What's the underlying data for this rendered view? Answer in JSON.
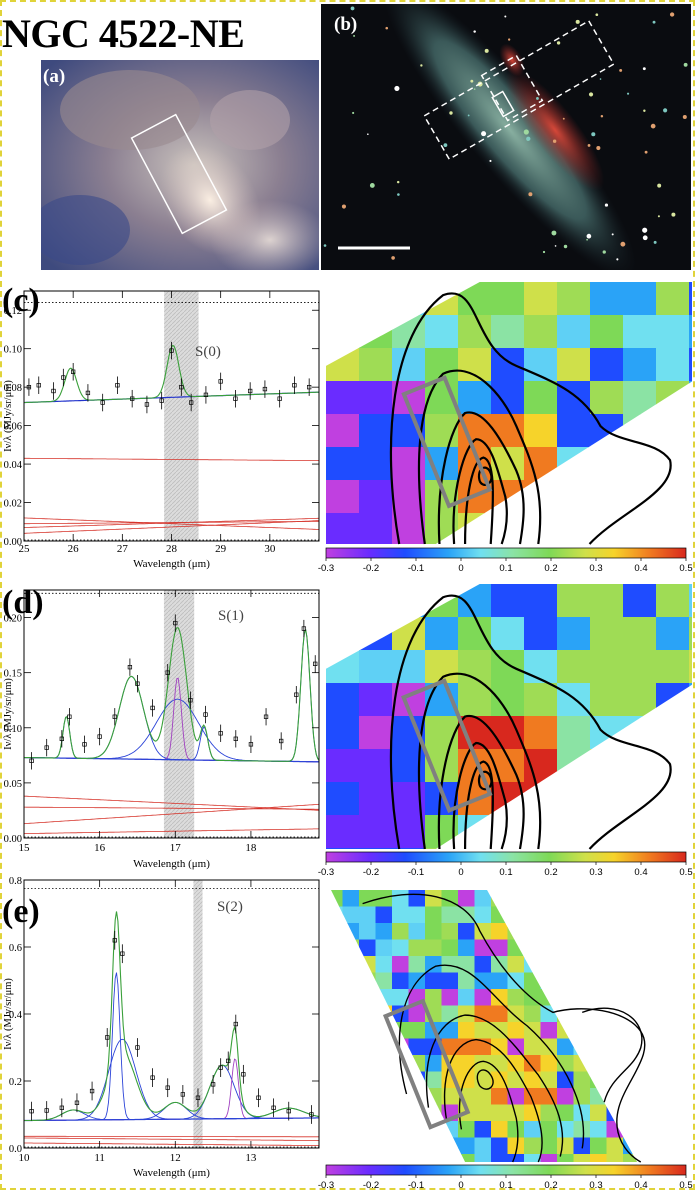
{
  "figure": {
    "title": "NGC 4522-NE",
    "image_a_label": "(a)",
    "image_b_label": "(b)"
  },
  "panels": [
    {
      "label": "(c)",
      "line_label": "S(0)",
      "xlabel": "Wavelength (μm)",
      "ylabel": "Iν/λ (MJy/sr/μm)",
      "xticks": [
        "25",
        "26",
        "27",
        "28",
        "29",
        "30"
      ],
      "yticks": [
        "0.00",
        "0.02",
        "0.04",
        "0.06",
        "0.08",
        "0.10",
        "0.12"
      ],
      "cbar_ticks": [
        "-0.3",
        "-0.2",
        "-0.1",
        "0",
        "0.1",
        "0.2",
        "0.3",
        "0.4",
        "0.5"
      ]
    },
    {
      "label": "(d)",
      "line_label": "S(1)",
      "xlabel": "Wavelength (μm)",
      "ylabel": "Iν/λ (MJy/sr/μm)",
      "xticks": [
        "15",
        "16",
        "17",
        "18"
      ],
      "yticks": [
        "0.00",
        "0.05",
        "0.10",
        "0.15",
        "0.20"
      ],
      "cbar_ticks": [
        "-0.3",
        "-0.2",
        "-0.1",
        "0",
        "0.1",
        "0.2",
        "0.3",
        "0.4",
        "0.5"
      ]
    },
    {
      "label": "(e)",
      "line_label": "S(2)",
      "xlabel": "Wavelength (μm)",
      "ylabel": "Iν/λ (MJy/sr/μm)",
      "xticks": [
        "10",
        "11",
        "12",
        "13"
      ],
      "yticks": [
        "0.0",
        "0.2",
        "0.4",
        "0.6",
        "0.8"
      ],
      "cbar_ticks": [
        "-0.3",
        "-0.2",
        "-0.1",
        "0",
        "0.1",
        "0.2",
        "0.3",
        "0.4",
        "0.5"
      ]
    }
  ],
  "chart_data": [
    {
      "type": "line",
      "title": "S(0)",
      "xlabel": "Wavelength (μm)",
      "ylabel": "Iν/λ (MJy/sr/μm)",
      "xlim": [
        25,
        31
      ],
      "ylim": [
        0,
        0.13
      ],
      "x": [
        25.1,
        25.3,
        25.6,
        25.8,
        26.0,
        26.3,
        26.6,
        26.9,
        27.2,
        27.5,
        27.8,
        28.0,
        28.2,
        28.4,
        28.7,
        29.0,
        29.3,
        29.6,
        29.9,
        30.2,
        30.5,
        30.8
      ],
      "series": [
        {
          "name": "observed",
          "values": [
            0.08,
            0.081,
            0.078,
            0.085,
            0.088,
            0.077,
            0.072,
            0.081,
            0.074,
            0.071,
            0.073,
            0.099,
            0.08,
            0.072,
            0.076,
            0.083,
            0.074,
            0.078,
            0.079,
            0.074,
            0.081,
            0.08
          ]
        },
        {
          "name": "fit",
          "values": [
            0.072,
            0.073,
            0.075,
            0.085,
            0.088,
            0.076,
            0.074,
            0.074,
            0.074,
            0.074,
            0.076,
            0.099,
            0.082,
            0.075,
            0.075,
            0.075,
            0.075,
            0.076,
            0.076,
            0.077,
            0.077,
            0.078
          ]
        }
      ],
      "shaded_band": [
        27.85,
        28.55
      ],
      "dotted_level": 0.124
    },
    {
      "type": "line",
      "title": "S(1)",
      "xlabel": "Wavelength (μm)",
      "ylabel": "Iν/λ (MJy/sr/μm)",
      "xlim": [
        15,
        18.9
      ],
      "ylim": [
        0,
        0.225
      ],
      "x": [
        15.1,
        15.3,
        15.5,
        15.6,
        15.8,
        16.0,
        16.2,
        16.4,
        16.5,
        16.7,
        16.9,
        17.0,
        17.2,
        17.4,
        17.6,
        17.8,
        18.0,
        18.2,
        18.4,
        18.6,
        18.7,
        18.85
      ],
      "series": [
        {
          "name": "observed",
          "values": [
            0.07,
            0.082,
            0.09,
            0.11,
            0.085,
            0.092,
            0.11,
            0.155,
            0.14,
            0.118,
            0.15,
            0.195,
            0.125,
            0.112,
            0.095,
            0.09,
            0.085,
            0.11,
            0.088,
            0.13,
            0.19,
            0.158
          ]
        },
        {
          "name": "fit",
          "values": [
            0.072,
            0.074,
            0.085,
            0.108,
            0.082,
            0.09,
            0.115,
            0.158,
            0.142,
            0.12,
            0.152,
            0.196,
            0.13,
            0.115,
            0.098,
            0.088,
            0.084,
            0.082,
            0.085,
            0.12,
            0.192,
            0.16
          ]
        }
      ],
      "shaded_band": [
        16.85,
        17.25
      ],
      "dotted_level": 0.222
    },
    {
      "type": "line",
      "title": "S(2)",
      "xlabel": "Wavelength (μm)",
      "ylabel": "Iν/λ (MJy/sr/μm)",
      "xlim": [
        10,
        13.9
      ],
      "ylim": [
        0,
        0.8
      ],
      "x": [
        10.1,
        10.3,
        10.5,
        10.7,
        10.9,
        11.1,
        11.2,
        11.3,
        11.5,
        11.7,
        11.9,
        12.1,
        12.3,
        12.5,
        12.6,
        12.7,
        12.8,
        12.9,
        13.1,
        13.3,
        13.5,
        13.8
      ],
      "series": [
        {
          "name": "observed",
          "values": [
            0.11,
            0.112,
            0.12,
            0.135,
            0.17,
            0.33,
            0.62,
            0.58,
            0.3,
            0.21,
            0.18,
            0.16,
            0.15,
            0.19,
            0.24,
            0.26,
            0.37,
            0.22,
            0.15,
            0.12,
            0.11,
            0.1
          ]
        },
        {
          "name": "fit",
          "values": [
            0.11,
            0.112,
            0.118,
            0.13,
            0.165,
            0.34,
            0.7,
            0.62,
            0.31,
            0.22,
            0.19,
            0.165,
            0.155,
            0.195,
            0.245,
            0.27,
            0.38,
            0.23,
            0.15,
            0.12,
            0.11,
            0.1
          ]
        }
      ],
      "shaded_band": [
        12.24,
        12.36
      ],
      "dotted_level": 0.775
    }
  ]
}
